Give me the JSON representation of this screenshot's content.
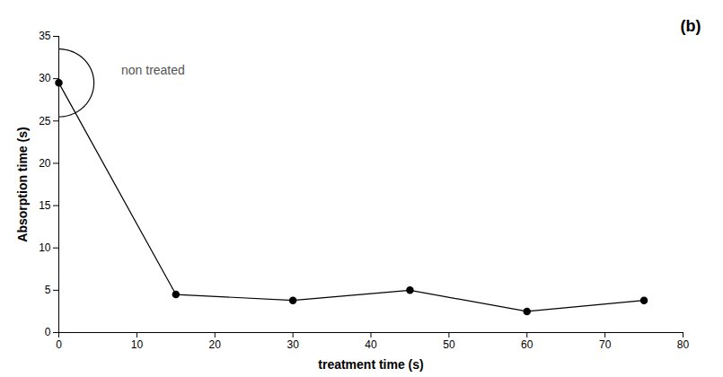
{
  "chart_data": {
    "type": "line",
    "x": [
      0,
      15,
      30,
      45,
      60,
      75
    ],
    "values": [
      29.5,
      4.5,
      3.8,
      5.0,
      2.5,
      3.8
    ],
    "color": "#000000",
    "marker": "o",
    "xlabel": "treatment time (s)",
    "ylabel": "Absorption time (s)",
    "xlim": [
      0,
      80
    ],
    "ylim": [
      0,
      35
    ],
    "xticks": [
      0,
      10,
      20,
      30,
      40,
      50,
      60,
      70,
      80
    ],
    "yticks": [
      0,
      5,
      10,
      15,
      20,
      25,
      30,
      35
    ],
    "grid": false,
    "annotations": [
      {
        "text": "non treated",
        "x": 8,
        "y": 31
      },
      {
        "text": "(b)"
      }
    ],
    "highlight": {
      "x": 0,
      "y": 29.5,
      "width": 9,
      "height": 8
    }
  }
}
